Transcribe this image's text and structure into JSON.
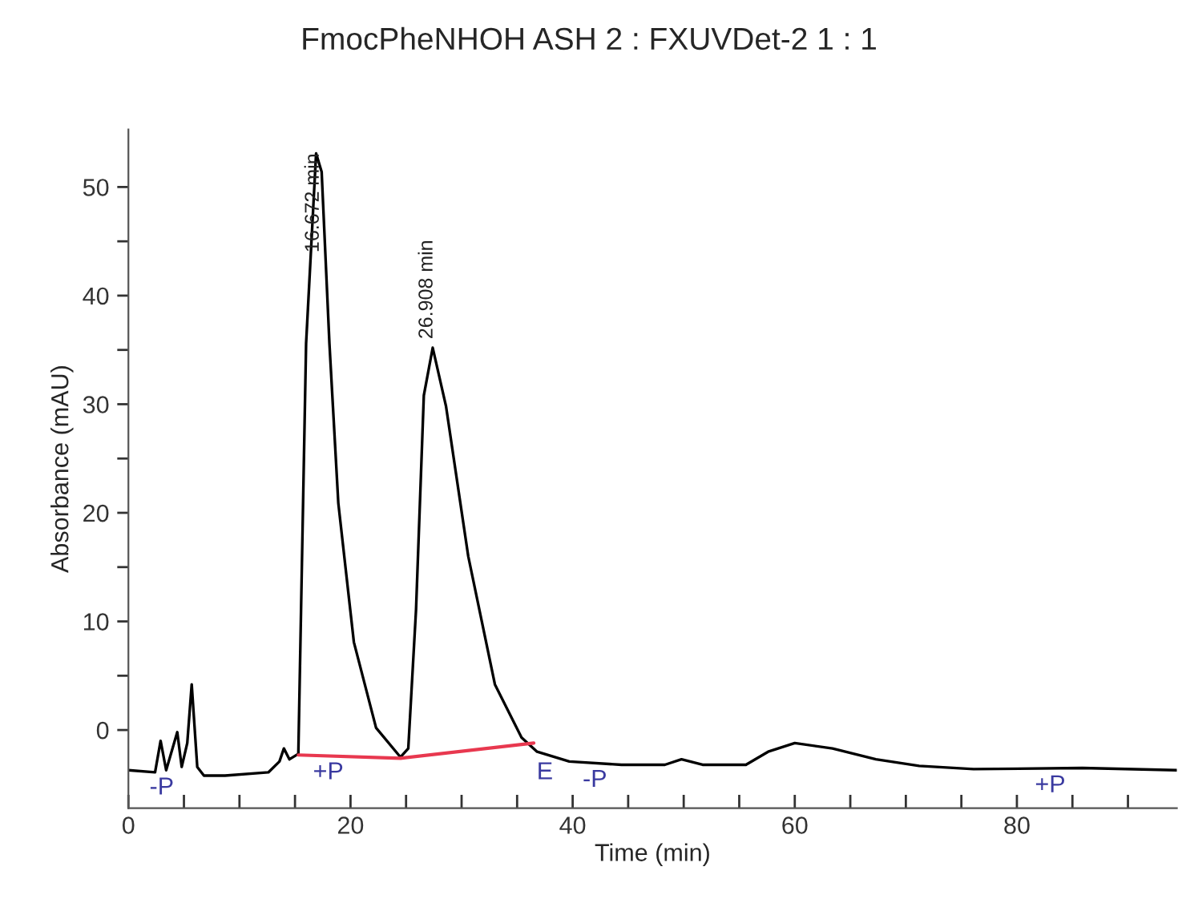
{
  "chart_data": {
    "type": "line",
    "title": "FmocPheNHOH ASH 2 : FXUVDet-2 1 : 1",
    "xlabel": "Time (min)",
    "ylabel": "Absorbance (mAU)",
    "series": [
      {
        "color": "#000000",
        "x": [
          0,
          2.4,
          2.9,
          3.4,
          4.4,
          4.8,
          5.3,
          5.7,
          6.2,
          6.8,
          8.7,
          12.6,
          13.6,
          14.0,
          14.5,
          15.3,
          16.0,
          16.9,
          17.4,
          18.1,
          18.9,
          20.3,
          22.3,
          24.5,
          25.2,
          25.9,
          26.6,
          27.4,
          28.6,
          30.6,
          33.0,
          35.4,
          36.8,
          39.7,
          44.4,
          48.3,
          49.8,
          51.7,
          55.6,
          57.6,
          60.0,
          63.4,
          67.3,
          71.2,
          76.1,
          85.9,
          94.4
        ],
        "values": [
          -3.7,
          -3.9,
          -1.0,
          -3.7,
          -0.2,
          -3.4,
          -1.2,
          4.2,
          -3.4,
          -4.2,
          -4.2,
          -3.9,
          -2.9,
          -1.7,
          -2.7,
          -2.2,
          35.6,
          53.1,
          51.4,
          35.6,
          20.9,
          8.1,
          0.2,
          -2.5,
          -1.7,
          11.1,
          30.8,
          35.2,
          29.8,
          16.0,
          4.2,
          -0.7,
          -2.0,
          -2.9,
          -3.2,
          -3.2,
          -2.7,
          -3.2,
          -3.2,
          -2.0,
          -1.2,
          -1.7,
          -2.7,
          -3.3,
          -3.6,
          -3.5,
          -3.7
        ]
      },
      {
        "color": "#e8384f",
        "x": [
          15.3,
          24.5,
          36.5
        ],
        "values": [
          -2.3,
          -2.6,
          -1.2
        ]
      }
    ],
    "annotations": [
      {
        "text": "16.672 min",
        "x": 16.672,
        "y": 53.1
      },
      {
        "text": "26.908 min",
        "x": 26.908,
        "y": 35.2
      },
      {
        "text": "-P",
        "x": 3,
        "y": -3.7
      },
      {
        "text": "+P",
        "x": 18,
        "y": -2.3
      },
      {
        "text": "E",
        "x": 37.5,
        "y": -2.3
      },
      {
        "text": "-P",
        "x": 42,
        "y": -3.0
      },
      {
        "text": "+P",
        "x": 83,
        "y": -3.5
      }
    ],
    "xlim": [
      0,
      94.4
    ],
    "ylim": [
      -7.2,
      55.3
    ],
    "xticks": [
      0,
      {
        "value": 5,
        "label": null
      },
      {
        "value": 10,
        "label": null
      },
      {
        "value": 15,
        "label": null
      },
      20,
      {
        "value": 25,
        "label": null
      },
      {
        "value": 30,
        "label": null
      },
      {
        "value": 35,
        "label": null
      },
      40,
      {
        "value": 45,
        "label": null
      },
      {
        "value": 50,
        "label": null
      },
      {
        "value": 55,
        "label": null
      },
      60,
      {
        "value": 65,
        "label": null
      },
      {
        "value": 70,
        "label": null
      },
      {
        "value": 75,
        "label": null
      },
      80,
      {
        "value": 85,
        "label": null
      },
      {
        "value": 90,
        "label": null
      }
    ],
    "yticks": [
      0,
      {
        "value": 5,
        "label": null
      },
      10,
      {
        "value": 15,
        "label": null
      },
      20,
      {
        "value": 25,
        "label": null
      },
      30,
      {
        "value": 35,
        "label": null
      },
      40,
      {
        "value": 45,
        "label": null
      },
      50
    ],
    "grid": false,
    "legend": false,
    "marker": "none",
    "line_style": "solid"
  }
}
